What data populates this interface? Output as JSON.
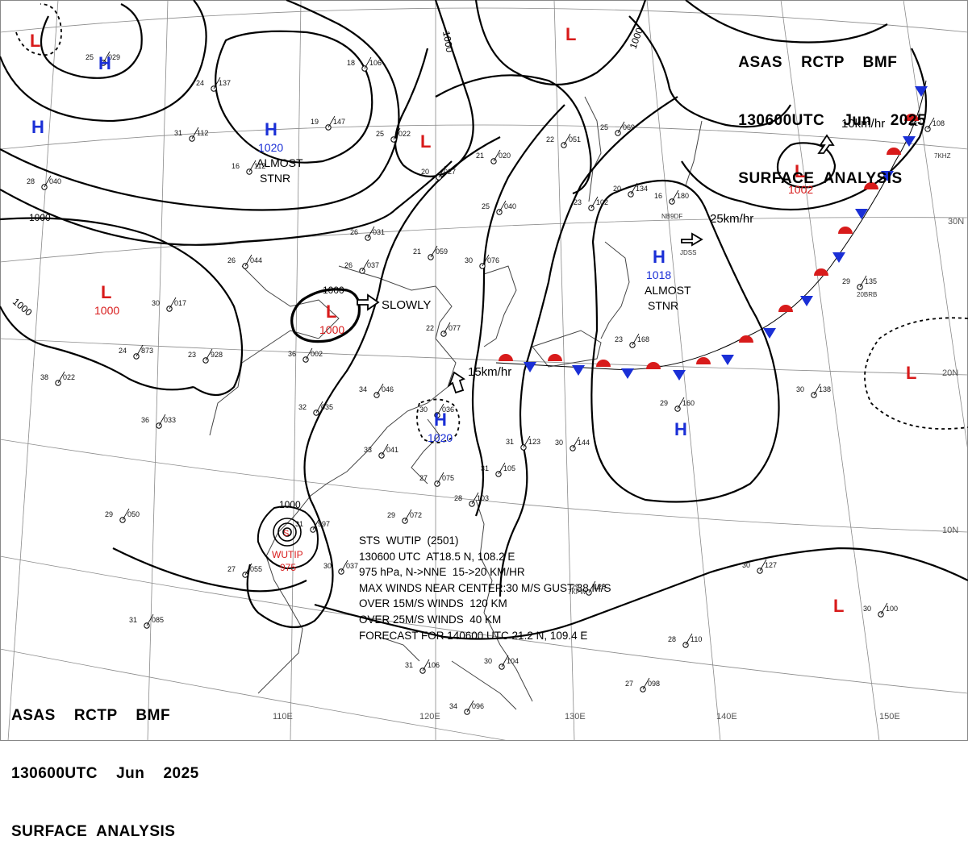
{
  "header": {
    "agency_line": "ASAS    RCTP    BMF",
    "time_line": "130600UTC    Jun    2025",
    "title_line": "SURFACE  ANALYSIS"
  },
  "colors": {
    "high": "#1a2fd6",
    "low": "#d81b1b",
    "lines": "#000000",
    "grid": "#777777"
  },
  "systems": [
    {
      "type": "H",
      "pressure": "",
      "note": ""
    },
    {
      "type": "H",
      "pressure": "",
      "note": ""
    },
    {
      "type": "H",
      "pressure": "1020",
      "note": "ALMOST\nSTNR"
    },
    {
      "type": "L",
      "pressure": "",
      "note": ""
    },
    {
      "type": "L",
      "pressure": "",
      "note": ""
    },
    {
      "type": "L",
      "pressure": "",
      "note": ""
    },
    {
      "type": "L",
      "pressure": "1000",
      "note": ""
    },
    {
      "type": "L",
      "pressure": "1000",
      "note": ""
    },
    {
      "type": "L",
      "pressure": "1002",
      "note": ""
    },
    {
      "type": "H",
      "pressure": "1020",
      "note": ""
    },
    {
      "type": "H",
      "pressure": "1018",
      "note": "ALMOST\nSTNR"
    },
    {
      "type": "H",
      "pressure": "",
      "note": ""
    },
    {
      "type": "L",
      "pressure": "",
      "note": ""
    },
    {
      "type": "L",
      "pressure": "",
      "note": ""
    }
  ],
  "movements": [
    "10km/hr",
    "25km/hr",
    "SLOWLY",
    "15km/hr"
  ],
  "isobar_labels": [
    "1000",
    "1000",
    "1000",
    "1000",
    "1000",
    "1000"
  ],
  "typhoon": {
    "name": "WUTIP",
    "pressure": "975",
    "lines": [
      "STS  WUTIP  (2501)",
      "130600 UTC  AT18.5 N, 108.2 E",
      "975 hPa, N->NNE  15->20 KM/HR",
      "MAX WINDS NEAR CENTER:30 M/S GUST 38 M/S",
      "OVER 15M/S WINDS  120 KM",
      "OVER 25M/S WINDS  40 KM",
      "FORECAST FOR 140600 UTC 21.2 N, 109.4 E"
    ]
  },
  "lon_labels": [
    "110E",
    "120E",
    "130E",
    "140E",
    "150E"
  ],
  "lat_labels": [
    "30N",
    "20N",
    "10N"
  ],
  "stations": [
    {
      "t": "25",
      "p": "029"
    },
    {
      "t": "24",
      "p": "137"
    },
    {
      "t": "18",
      "p": "106"
    },
    {
      "t": "19",
      "p": "147"
    },
    {
      "t": "16",
      "p": "112"
    },
    {
      "t": "31",
      "p": "112"
    },
    {
      "t": "28",
      "p": "040"
    },
    {
      "t": "25",
      "p": "022"
    },
    {
      "t": "21",
      "p": "020"
    },
    {
      "t": "20",
      "p": "027"
    },
    {
      "t": "22",
      "p": "051"
    },
    {
      "t": "25",
      "p": "069"
    },
    {
      "t": "26",
      "p": "031"
    },
    {
      "t": "26",
      "p": "044"
    },
    {
      "t": "26",
      "p": "037"
    },
    {
      "t": "21",
      "p": "059"
    },
    {
      "t": "30",
      "p": "076"
    },
    {
      "t": "25",
      "p": "040"
    },
    {
      "t": "23",
      "p": "102"
    },
    {
      "t": "20",
      "p": "134"
    },
    {
      "t": "30",
      "p": "017"
    },
    {
      "t": "24",
      "p": "873"
    },
    {
      "t": "23",
      "p": "928"
    },
    {
      "t": "36",
      "p": "002"
    },
    {
      "t": "22",
      "p": "077"
    },
    {
      "t": "38",
      "p": "022"
    },
    {
      "t": "36",
      "p": "033"
    },
    {
      "t": "32",
      "p": "035"
    },
    {
      "t": "34",
      "p": "046"
    },
    {
      "t": "33",
      "p": "041"
    },
    {
      "t": "30",
      "p": "036"
    },
    {
      "t": "31",
      "p": "123"
    },
    {
      "t": "30",
      "p": "144"
    },
    {
      "t": "27",
      "p": "075"
    },
    {
      "t": "28",
      "p": "103"
    },
    {
      "t": "31",
      "p": "105"
    },
    {
      "t": "29",
      "p": "072"
    },
    {
      "t": "31",
      "p": "997"
    },
    {
      "t": "29",
      "p": "050"
    },
    {
      "t": "27",
      "p": "055"
    },
    {
      "t": "30",
      "p": "037"
    },
    {
      "t": "31",
      "p": "085"
    },
    {
      "t": "29",
      "p": "128"
    },
    {
      "t": "30",
      "p": "127"
    },
    {
      "t": "30",
      "p": "100"
    },
    {
      "t": "28",
      "p": "110"
    },
    {
      "t": "27",
      "p": "098"
    },
    {
      "t": "34",
      "p": "096"
    },
    {
      "t": "31",
      "p": "106"
    },
    {
      "t": "30",
      "p": "104"
    },
    {
      "t": "29",
      "p": "160"
    },
    {
      "t": "30",
      "p": "138"
    },
    {
      "t": "29",
      "p": "135"
    },
    {
      "t": "16",
      "p": "180"
    },
    {
      "t": "23",
      "p": "168"
    },
    {
      "t": "21",
      "p": "108"
    }
  ],
  "station_codes": [
    "NB9DF",
    "JDSS",
    "7KPW",
    "20BRB",
    "7KHZ"
  ]
}
